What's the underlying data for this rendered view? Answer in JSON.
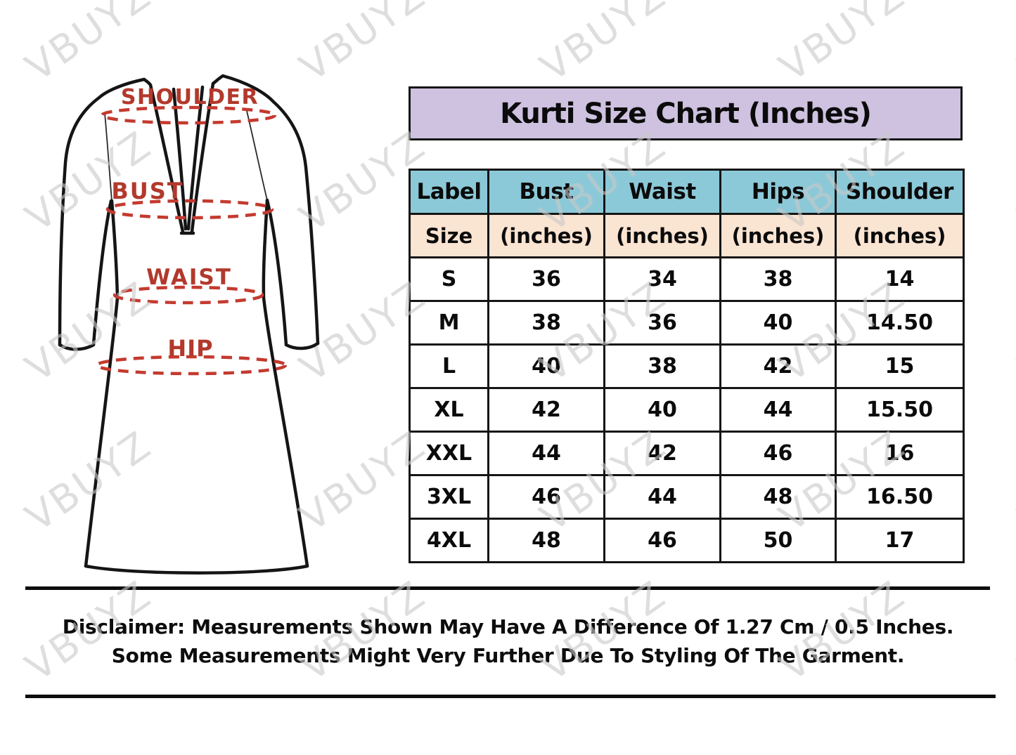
{
  "title": "Kurti Size Chart (Inches)",
  "watermark": {
    "text": "VBUYZ"
  },
  "diagram": {
    "garment": "kurti-outline-sketch",
    "labels": {
      "shoulder": "SHOULDER",
      "bust": "BUST",
      "waist": "WAIST",
      "hip": "HIP"
    }
  },
  "table": {
    "columns": [
      "Label",
      "Bust",
      "Waist",
      "Hips",
      "Shoulder"
    ],
    "subheader": [
      "Size",
      "(inches)",
      "(inches)",
      "(inches)",
      "(inches)"
    ],
    "rows": [
      [
        "S",
        "36",
        "34",
        "38",
        "14"
      ],
      [
        "M",
        "38",
        "36",
        "40",
        "14.50"
      ],
      [
        "L",
        "40",
        "38",
        "42",
        "15"
      ],
      [
        "XL",
        "42",
        "40",
        "44",
        "15.50"
      ],
      [
        "XXL",
        "44",
        "42",
        "46",
        "16"
      ],
      [
        "3XL",
        "46",
        "44",
        "48",
        "16.50"
      ],
      [
        "4XL",
        "48",
        "46",
        "50",
        "17"
      ]
    ]
  },
  "disclaimer": {
    "line1": "Disclaimer: Measurements Shown May Have A Difference Of 1.27 Cm / 0.5 Inches.",
    "line2": "Some Measurements Might Very Further Due To Styling Of The Garment."
  },
  "colors": {
    "title_bg": "#cec2e0",
    "header_bg": "#8cc9d8",
    "subheader_bg": "#fae4d2",
    "border": "#151515",
    "label_red": "#b2392c",
    "dash_red": "#c43a2f",
    "watermark_gray": "#c9c9c9"
  },
  "chart_data": {
    "type": "table",
    "title": "Kurti Size Chart (Inches)",
    "columns": [
      "Label (Size)",
      "Bust (inches)",
      "Waist (inches)",
      "Hips (inches)",
      "Shoulder (inches)"
    ],
    "rows": [
      {
        "size": "S",
        "bust": 36,
        "waist": 34,
        "hips": 38,
        "shoulder": 14
      },
      {
        "size": "M",
        "bust": 38,
        "waist": 36,
        "hips": 40,
        "shoulder": 14.5
      },
      {
        "size": "L",
        "bust": 40,
        "waist": 38,
        "hips": 42,
        "shoulder": 15
      },
      {
        "size": "XL",
        "bust": 42,
        "waist": 40,
        "hips": 44,
        "shoulder": 15.5
      },
      {
        "size": "XXL",
        "bust": 44,
        "waist": 42,
        "hips": 46,
        "shoulder": 16
      },
      {
        "size": "3XL",
        "bust": 46,
        "waist": 44,
        "hips": 48,
        "shoulder": 16.5
      },
      {
        "size": "4XL",
        "bust": 48,
        "waist": 46,
        "hips": 50,
        "shoulder": 17
      }
    ]
  }
}
